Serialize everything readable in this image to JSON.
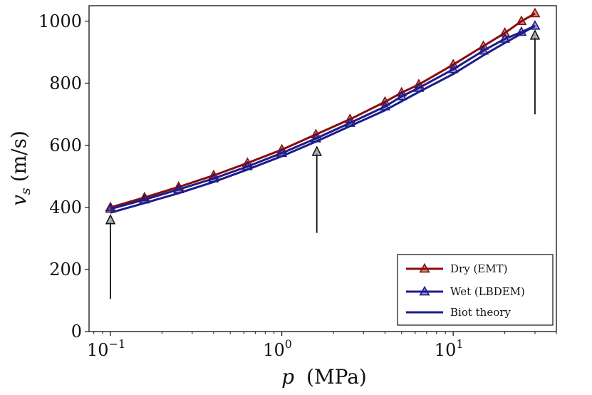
{
  "chart_data": {
    "type": "line",
    "title": "",
    "x_scale": "log",
    "xlim": [
      0.075,
      40
    ],
    "ylim": [
      0,
      1050
    ],
    "xlabel_var": "p",
    "xlabel_unit": "(MPa)",
    "ylabel_var": "v",
    "ylabel_sub": "s",
    "ylabel_unit": "(m/s)",
    "x_ticks": [
      {
        "value": 0.1,
        "base": "10",
        "exp": "−1"
      },
      {
        "value": 1,
        "base": "10",
        "exp": "0"
      },
      {
        "value": 10,
        "base": "10",
        "exp": "1"
      }
    ],
    "y_ticks": [
      {
        "value": 0,
        "label": "0"
      },
      {
        "value": 200,
        "label": "200"
      },
      {
        "value": 400,
        "label": "400"
      },
      {
        "value": 600,
        "label": "600"
      },
      {
        "value": 800,
        "label": "800"
      },
      {
        "value": 1000,
        "label": "1000"
      }
    ],
    "legend_position": "bottom-right",
    "series": [
      {
        "name": "Dry (EMT)",
        "color": "#8b0c0c",
        "marker": "triangle",
        "x": [
          0.1,
          0.158,
          0.25,
          0.4,
          0.63,
          1.0,
          1.58,
          2.5,
          4.0,
          5.0,
          6.3,
          10,
          15,
          20,
          25,
          30
        ],
        "y": [
          400,
          432,
          466,
          503,
          543,
          586,
          635,
          684,
          740,
          770,
          796,
          860,
          920,
          962,
          1000,
          1025
        ]
      },
      {
        "name": "Wet (LBDEM)",
        "color": "#1c1c8c",
        "marker": "triangle",
        "x": [
          0.1,
          0.158,
          0.25,
          0.4,
          0.63,
          1.0,
          1.58,
          2.5,
          4.0,
          5.0,
          6.3,
          10,
          15,
          20,
          25,
          30
        ],
        "y": [
          395,
          425,
          458,
          493,
          532,
          575,
          622,
          672,
          725,
          758,
          785,
          845,
          905,
          943,
          965,
          985
        ]
      },
      {
        "name": "Biot theory",
        "color": "#1c1c8c",
        "marker": "none",
        "x": [
          0.1,
          0.158,
          0.25,
          0.4,
          0.63,
          1.0,
          1.58,
          2.5,
          4.0,
          5.0,
          6.3,
          10,
          15,
          20,
          25,
          30
        ],
        "y": [
          383,
          414,
          446,
          482,
          522,
          565,
          612,
          662,
          713,
          742,
          772,
          830,
          890,
          930,
          960,
          985
        ]
      }
    ],
    "annotations": [
      {
        "type": "arrow",
        "x": 0.1,
        "y_from": 105,
        "y_to": 375,
        "color": "#111111"
      },
      {
        "type": "arrow",
        "x": 1.6,
        "y_from": 318,
        "y_to": 595,
        "color": "#111111"
      },
      {
        "type": "arrow",
        "x": 30,
        "y_from": 700,
        "y_to": 970,
        "color": "#111111"
      }
    ]
  }
}
